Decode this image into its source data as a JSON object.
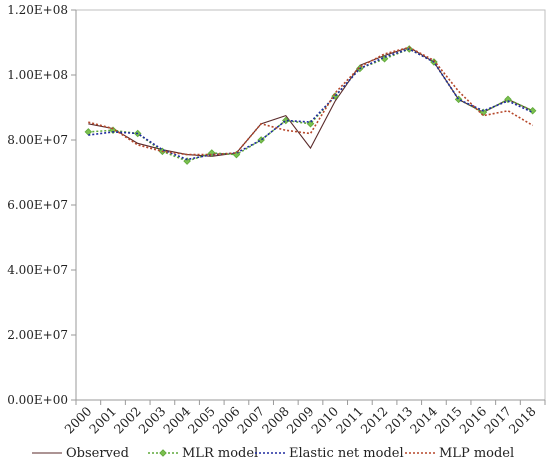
{
  "chart_data": {
    "type": "line",
    "title": "",
    "xlabel": "",
    "ylabel": "",
    "categories": [
      "2000",
      "2001",
      "2002",
      "2003",
      "2004",
      "2005",
      "2006",
      "2007",
      "2008",
      "2009",
      "2010",
      "2011",
      "2012",
      "2013",
      "2014",
      "2015",
      "2016",
      "2017",
      "2018"
    ],
    "ylim": [
      0,
      120000000
    ],
    "y_ticks": [
      {
        "value": 0,
        "label": "0.00E+00"
      },
      {
        "value": 20000000,
        "label": "2.00E+07"
      },
      {
        "value": 40000000,
        "label": "4.00E+07"
      },
      {
        "value": 60000000,
        "label": "6.00E+07"
      },
      {
        "value": 80000000,
        "label": "8.00E+07"
      },
      {
        "value": 100000000,
        "label": "1.00E+08"
      },
      {
        "value": 120000000,
        "label": "1.20E+08"
      }
    ],
    "grid": false,
    "legend_position": "bottom",
    "series": [
      {
        "name": "Observed",
        "color": "#5a2a2a",
        "style": "solid",
        "values": [
          85000000,
          83500000,
          79000000,
          77000000,
          75500000,
          75000000,
          76000000,
          85000000,
          87500000,
          77500000,
          92000000,
          103000000,
          106000000,
          108500000,
          104000000,
          92500000,
          88500000,
          92500000,
          89000000
        ]
      },
      {
        "name": "MLR model",
        "color": "#5fa83a",
        "style": "dotted",
        "marker": "diamond",
        "values": [
          82500000,
          83000000,
          82000000,
          76500000,
          73500000,
          76000000,
          75500000,
          80000000,
          86000000,
          85000000,
          93500000,
          102000000,
          105000000,
          108000000,
          104000000,
          92500000,
          88500000,
          92500000,
          89000000
        ]
      },
      {
        "name": "Elastic net model",
        "color": "#1f2a9f",
        "style": "dotted",
        "values": [
          81500000,
          82500000,
          82000000,
          77000000,
          74000000,
          75500000,
          76000000,
          80000000,
          86000000,
          85500000,
          93500000,
          102000000,
          105500000,
          108000000,
          104000000,
          92500000,
          89000000,
          92000000,
          88500000
        ]
      },
      {
        "name": "MLP model",
        "color": "#b5472a",
        "style": "dotted",
        "values": [
          85500000,
          83500000,
          78500000,
          76500000,
          75500000,
          75500000,
          76000000,
          85000000,
          83000000,
          82000000,
          94500000,
          102500000,
          106500000,
          108500000,
          104500000,
          95000000,
          87500000,
          89000000,
          84500000
        ]
      }
    ]
  }
}
